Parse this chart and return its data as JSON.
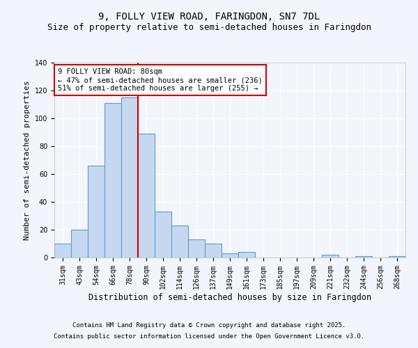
{
  "title": "9, FOLLY VIEW ROAD, FARINGDON, SN7 7DL",
  "subtitle": "Size of property relative to semi-detached houses in Faringdon",
  "xlabel": "Distribution of semi-detached houses by size in Faringdon",
  "ylabel": "Number of semi-detached properties",
  "categories": [
    "31sqm",
    "43sqm",
    "54sqm",
    "66sqm",
    "78sqm",
    "90sqm",
    "102sqm",
    "114sqm",
    "126sqm",
    "137sqm",
    "149sqm",
    "161sqm",
    "173sqm",
    "185sqm",
    "197sqm",
    "209sqm",
    "221sqm",
    "232sqm",
    "244sqm",
    "256sqm",
    "268sqm"
  ],
  "values": [
    10,
    20,
    66,
    111,
    115,
    89,
    33,
    23,
    13,
    10,
    3,
    4,
    0,
    0,
    0,
    0,
    2,
    0,
    1,
    0,
    1
  ],
  "bar_color": "#c5d8f0",
  "bar_edge_color": "#5b9bd5",
  "vline_x_index": 4,
  "vline_color": "#cc0000",
  "annotation_line1": "9 FOLLY VIEW ROAD: 80sqm",
  "annotation_line2": "← 47% of semi-detached houses are smaller (236)",
  "annotation_line3": "51% of semi-detached houses are larger (255) →",
  "annotation_box_color": "#ffffff",
  "annotation_box_edge": "#cc0000",
  "ylim": [
    0,
    140
  ],
  "footer1": "Contains HM Land Registry data © Crown copyright and database right 2025.",
  "footer2": "Contains public sector information licensed under the Open Government Licence v3.0.",
  "bg_color": "#f2f5fb",
  "plot_bg_color": "#f2f5fb",
  "title_fontsize": 10,
  "subtitle_fontsize": 9,
  "xlabel_fontsize": 8.5,
  "ylabel_fontsize": 8,
  "tick_fontsize": 7,
  "footer_fontsize": 6.5,
  "annotation_fontsize": 7.5
}
